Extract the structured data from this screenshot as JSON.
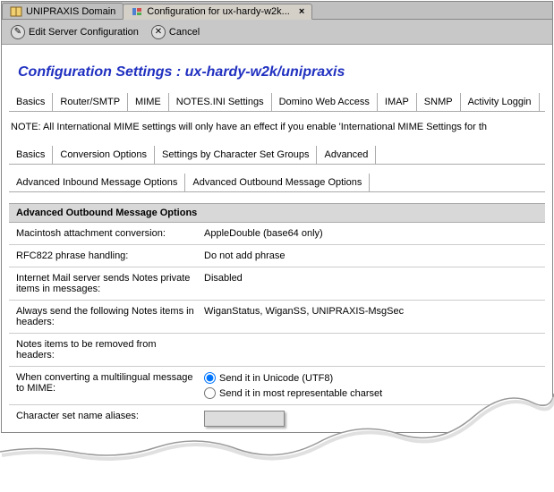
{
  "tabs": {
    "inactive": "UNIPRAXIS Domain",
    "active": "Configuration for ux-hardy-w2k..."
  },
  "toolbar": {
    "edit_label": "Edit Server Configuration",
    "cancel_label": "Cancel"
  },
  "page_title": {
    "prefix": "Configuration Settings :  ",
    "server": "ux-hardy-w2k/unipraxis"
  },
  "main_tabs": [
    "Basics",
    "Router/SMTP",
    "MIME",
    "NOTES.INI Settings",
    "Domino Web Access",
    "IMAP",
    "SNMP",
    "Activity Loggin"
  ],
  "note": "NOTE: All International MIME settings will only have an effect if you enable 'International MIME Settings for th",
  "sub_tabs": [
    "Basics",
    "Conversion Options",
    "Settings by Character Set Groups",
    "Advanced"
  ],
  "sub_tabs2": [
    "Advanced Inbound Message Options",
    "Advanced Outbound Message Options"
  ],
  "section_title": "Advanced Outbound Message Options",
  "rows": [
    {
      "label": "Macintosh attachment conversion:",
      "value": "AppleDouble (base64 only)"
    },
    {
      "label": "RFC822 phrase handling:",
      "value": "Do not add phrase"
    },
    {
      "label": "Internet Mail server sends Notes private items in messages:",
      "value": "Disabled"
    },
    {
      "label": "Always send the following Notes items in headers:",
      "value": "WiganStatus, WiganSS, UNIPRAXIS-MsgSec"
    },
    {
      "label": "Notes items to be removed from headers:",
      "value": ""
    }
  ],
  "multilingual_label": "When converting a multilingual message to MIME:",
  "multilingual_options": [
    "Send it in Unicode (UTF8)",
    "Send it in most representable charset"
  ],
  "multilingual_selected": 0,
  "charset_label": "Character set name aliases:",
  "colors": {
    "title": "#2030c0",
    "tab_bg": "#c0c0c0",
    "toolbar_bg": "#c8c8c8",
    "section_bg": "#d8d8d8",
    "border": "#aaaaaa"
  }
}
